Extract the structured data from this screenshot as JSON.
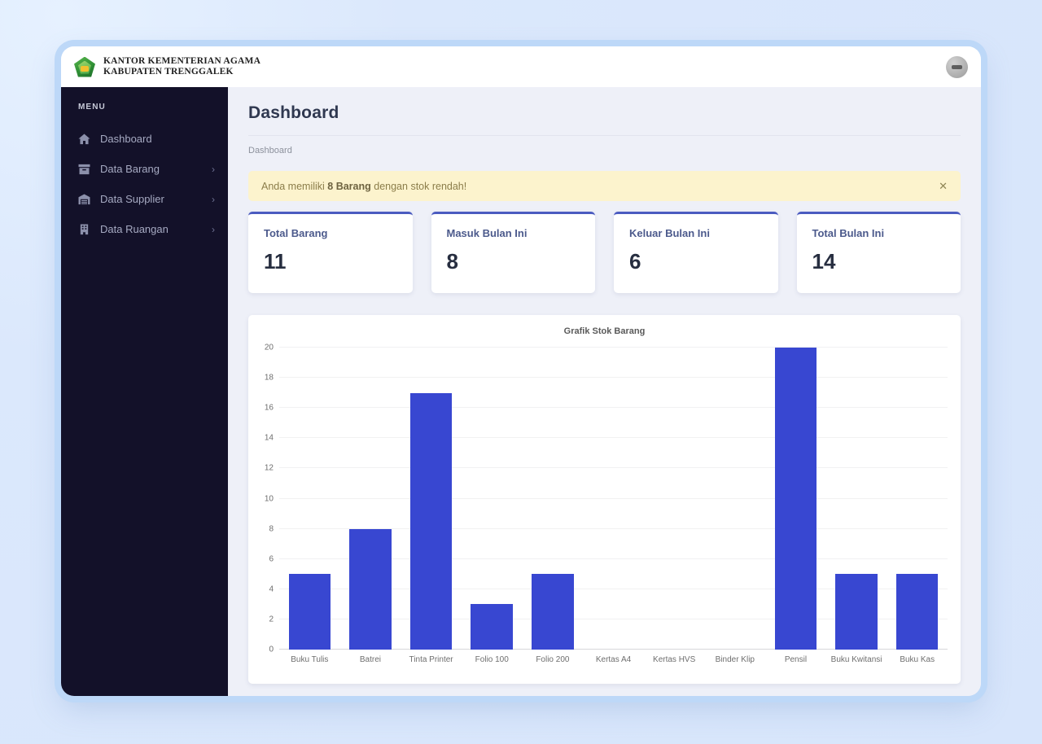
{
  "header": {
    "brand_line1": "KANTOR KEMENTERIAN AGAMA",
    "brand_line2": "KABUPATEN TRENGGALEK",
    "logo_icon": "ministry-of-religion-logo",
    "avatar_icon": "user-avatar"
  },
  "sidebar": {
    "menu_label": "MENU",
    "items": [
      {
        "label": "Dashboard",
        "icon": "home-icon",
        "has_submenu": false
      },
      {
        "label": "Data Barang",
        "icon": "archive-icon",
        "has_submenu": true
      },
      {
        "label": "Data Supplier",
        "icon": "warehouse-icon",
        "has_submenu": true
      },
      {
        "label": "Data Ruangan",
        "icon": "building-icon",
        "has_submenu": true
      }
    ],
    "chevron_glyph": "›"
  },
  "main": {
    "page_title": "Dashboard",
    "breadcrumb": "Dashboard",
    "alert": {
      "prefix": "Anda memiliki ",
      "bold": "8 Barang",
      "suffix": " dengan stok rendah!",
      "close_glyph": "✕"
    },
    "cards": [
      {
        "label": "Total Barang",
        "value": "11"
      },
      {
        "label": "Masuk Bulan Ini",
        "value": "8"
      },
      {
        "label": "Keluar Bulan Ini",
        "value": "6"
      },
      {
        "label": "Total Bulan Ini",
        "value": "14"
      }
    ]
  },
  "chart_data": {
    "type": "bar",
    "title": "Grafik Stok Barang",
    "categories": [
      "Buku Tulis",
      "Batrei",
      "Tinta Printer",
      "Folio 100",
      "Folio 200",
      "Kertas A4",
      "Kertas HVS",
      "Binder Klip",
      "Pensil",
      "Buku Kwitansi",
      "Buku Kas"
    ],
    "values": [
      5,
      8,
      17,
      3,
      5,
      0,
      0,
      0,
      20,
      5,
      5
    ],
    "xlabel": "",
    "ylabel": "",
    "ylim": [
      0,
      20
    ],
    "ytick_step": 2,
    "grid": true,
    "legend": "none",
    "bar_color": "#3847d1"
  },
  "colors": {
    "bar": "#3847d1",
    "card_accent": "#4b5bc0",
    "sidebar_bg": "#131129",
    "alert_bg": "#fcf3cd",
    "window_ring": "#bdd8f8",
    "main_bg": "#eef0f8"
  }
}
